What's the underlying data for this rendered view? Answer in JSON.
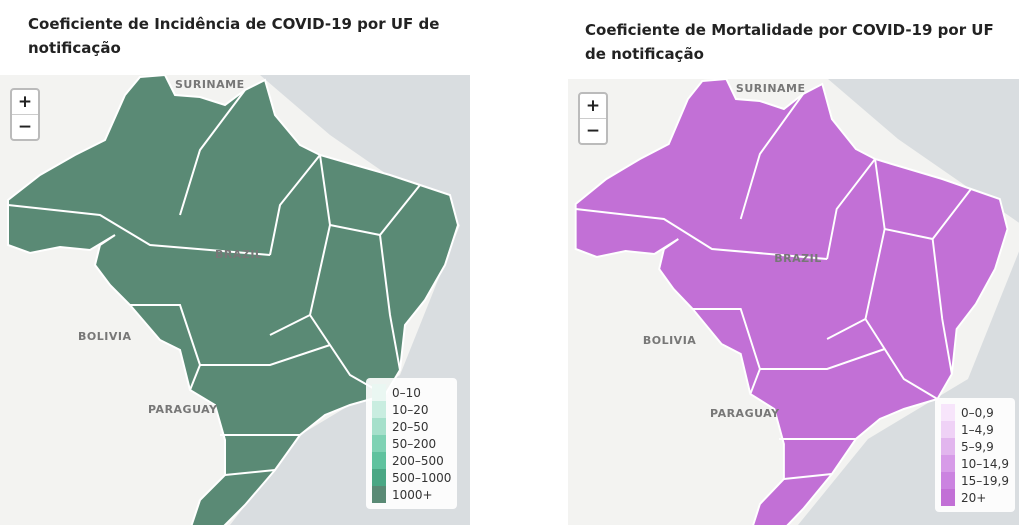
{
  "zoom": [
    "+",
    "−"
  ],
  "panels": [
    {
      "title": "Coeficiente de Incidência de COVID-19 por UF de notificação",
      "fill": "#5a8a75",
      "places": [
        "SURINAME",
        "BRAZIL",
        "BOLIVIA",
        "PARAGUAY"
      ],
      "legend": [
        {
          "label": "0–10",
          "color": "#eaf7f2"
        },
        {
          "label": "10–20",
          "color": "#c9ede0"
        },
        {
          "label": "20–50",
          "color": "#a6e0cb"
        },
        {
          "label": "50–200",
          "color": "#7fd2b4"
        },
        {
          "label": "200–500",
          "color": "#5fc29e"
        },
        {
          "label": "500–1000",
          "color": "#4aa784"
        },
        {
          "label": "1000+",
          "color": "#5a8a75"
        }
      ]
    },
    {
      "title": "Coeficiente de Mortalidade por COVID-19 por UF de notificação",
      "fill": "#c270d6",
      "places": [
        "SURINAME",
        "BRAZIL",
        "BOLIVIA",
        "PARAGUAY"
      ],
      "legend": [
        {
          "label": "0–0,9",
          "color": "#f7e5fb"
        },
        {
          "label": "1–4,9",
          "color": "#efd2f6"
        },
        {
          "label": "5–9,9",
          "color": "#e2b6ee"
        },
        {
          "label": "10–14,9",
          "color": "#d79be8"
        },
        {
          "label": "15–19,9",
          "color": "#cb83e0"
        },
        {
          "label": "20+",
          "color": "#c270d6"
        }
      ]
    }
  ]
}
